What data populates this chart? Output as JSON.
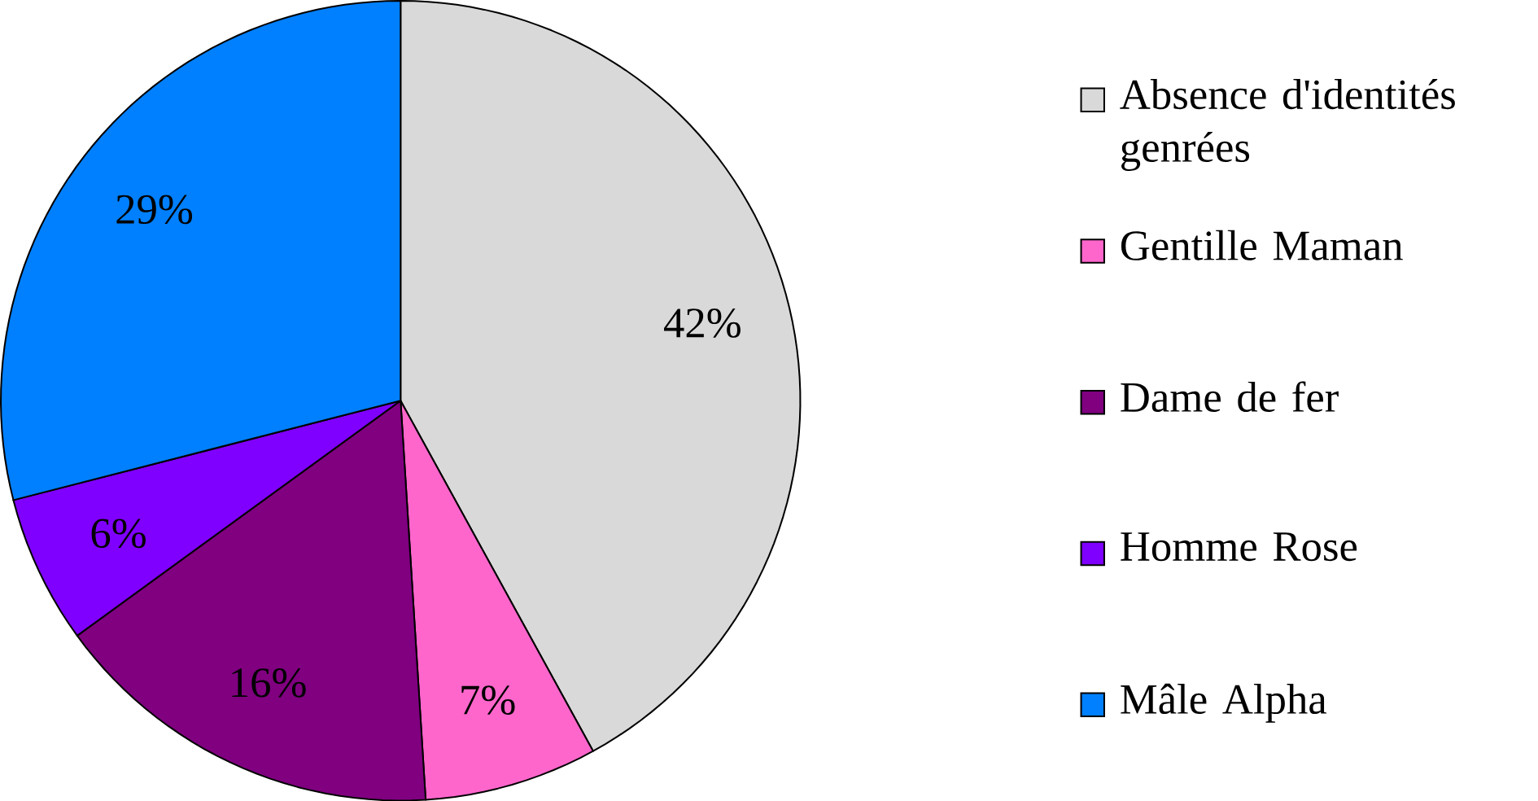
{
  "chart_data": {
    "type": "pie",
    "categories": [
      "Absence d'identités genrées",
      "Gentille Maman",
      "Dame de fer",
      "Homme Rose",
      "Mâle Alpha"
    ],
    "values": [
      42,
      7,
      16,
      6,
      29
    ],
    "value_labels": [
      "42%",
      "7%",
      "16%",
      "6%",
      "29%"
    ],
    "colors": [
      "#d9d9d9",
      "#ff66cc",
      "#800080",
      "#8000ff",
      "#0080ff"
    ],
    "legend": "right"
  }
}
